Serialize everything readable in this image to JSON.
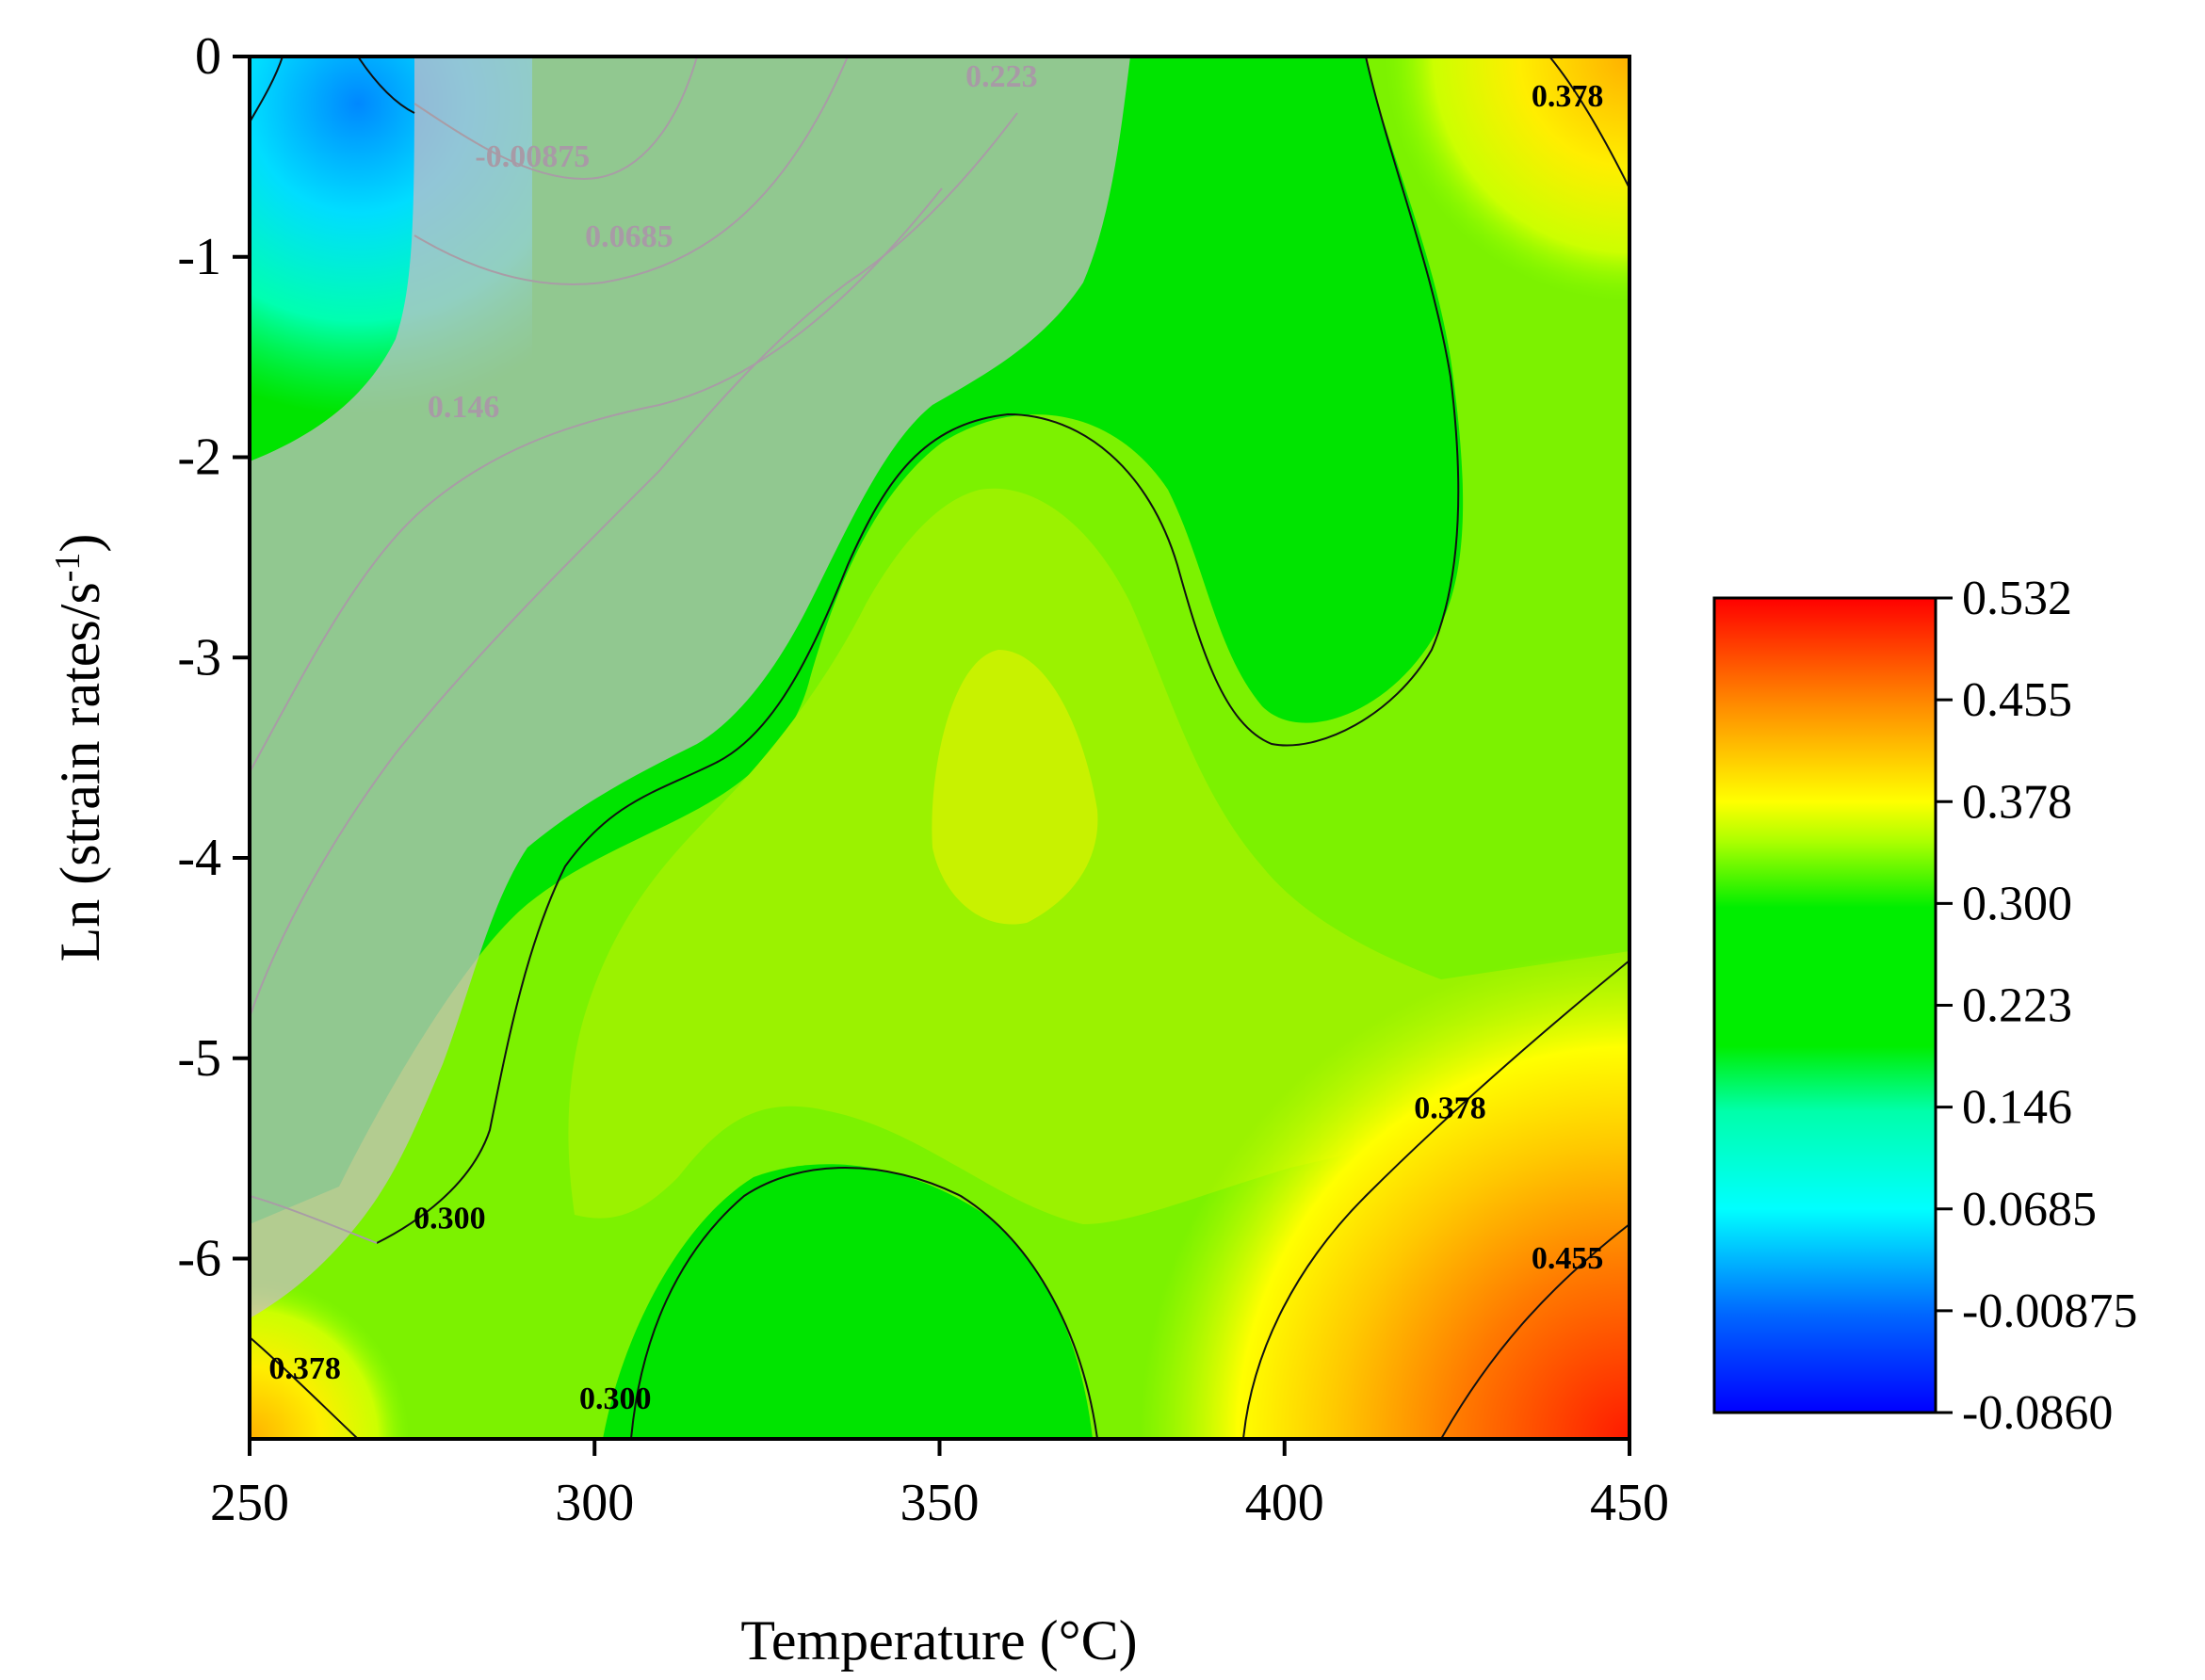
{
  "chart_data": {
    "type": "heatmap",
    "subtype": "contour (power dissipation map)",
    "xlabel": "Temperature (°C)",
    "ylabel": "Ln (strain rates/s",
    "ylabel_superscript": "-1",
    "ylabel_close": ")",
    "xlim": [
      250,
      450
    ],
    "ylim": [
      -6.9,
      0
    ],
    "x_ticks": [
      "250",
      "300",
      "350",
      "400",
      "450"
    ],
    "y_ticks": [
      "0",
      "-1",
      "-2",
      "-3",
      "-4",
      "-5",
      "-6"
    ],
    "colorbar": {
      "min": -0.086,
      "max": 0.532,
      "ticks": [
        "0.532",
        "0.455",
        "0.378",
        "0.300",
        "0.223",
        "0.146",
        "0.0685",
        "-0.00875",
        "-0.0860"
      ],
      "colors": [
        "#ff0000",
        "#ff8a00",
        "#ffff00",
        "#00ee00",
        "#00ee00",
        "#00ffaa",
        "#00ffff",
        "#0066ff",
        "#0000ff"
      ]
    },
    "contour_labels": [
      {
        "text": "0.223",
        "x": 359,
        "y": -0.15,
        "style": "grey"
      },
      {
        "text": "-0.00875",
        "x": 291,
        "y": -0.55,
        "style": "grey"
      },
      {
        "text": "0.0685",
        "x": 305,
        "y": -0.95,
        "style": "grey"
      },
      {
        "text": "0.146",
        "x": 281,
        "y": -1.8,
        "style": "grey"
      },
      {
        "text": "0.378",
        "x": 441,
        "y": -0.25,
        "style": "dark"
      },
      {
        "text": "0.300",
        "x": 279,
        "y": -5.85,
        "style": "dark"
      },
      {
        "text": "0.378",
        "x": 258,
        "y": -6.6,
        "style": "dark"
      },
      {
        "text": "0.300",
        "x": 303,
        "y": -6.75,
        "style": "dark"
      },
      {
        "text": "0.378",
        "x": 424,
        "y": -5.3,
        "style": "dark"
      },
      {
        "text": "0.455",
        "x": 441,
        "y": -6.05,
        "style": "dark"
      }
    ],
    "instability_region": "shaded grey (upper-left)"
  }
}
